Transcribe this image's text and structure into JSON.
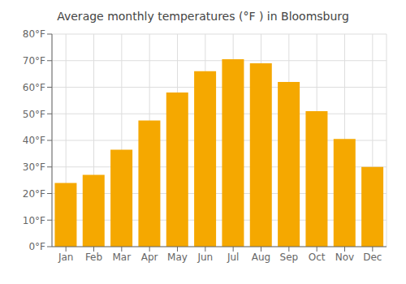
{
  "chart_data": {
    "type": "bar",
    "title": "Average monthly temperatures (°F ) in Bloomsburg",
    "categories": [
      "Jan",
      "Feb",
      "Mar",
      "Apr",
      "May",
      "Jun",
      "Jul",
      "Aug",
      "Sep",
      "Oct",
      "Nov",
      "Dec"
    ],
    "values": [
      24,
      27,
      36.5,
      47.5,
      58,
      66,
      70.5,
      69,
      62,
      51,
      40.5,
      30
    ],
    "color": "#F5A800",
    "ylim": [
      0,
      80
    ],
    "yticks": [
      {
        "value": 0,
        "label": "0°F"
      },
      {
        "value": 10,
        "label": "10°F"
      },
      {
        "value": 20,
        "label": "20°F"
      },
      {
        "value": 30,
        "label": "30°F"
      },
      {
        "value": 40,
        "label": "40°F"
      },
      {
        "value": 50,
        "label": "50°F"
      },
      {
        "value": 60,
        "label": "60°F"
      },
      {
        "value": 70,
        "label": "70°F"
      },
      {
        "value": 80,
        "label": "80°F"
      }
    ],
    "grid": true
  }
}
